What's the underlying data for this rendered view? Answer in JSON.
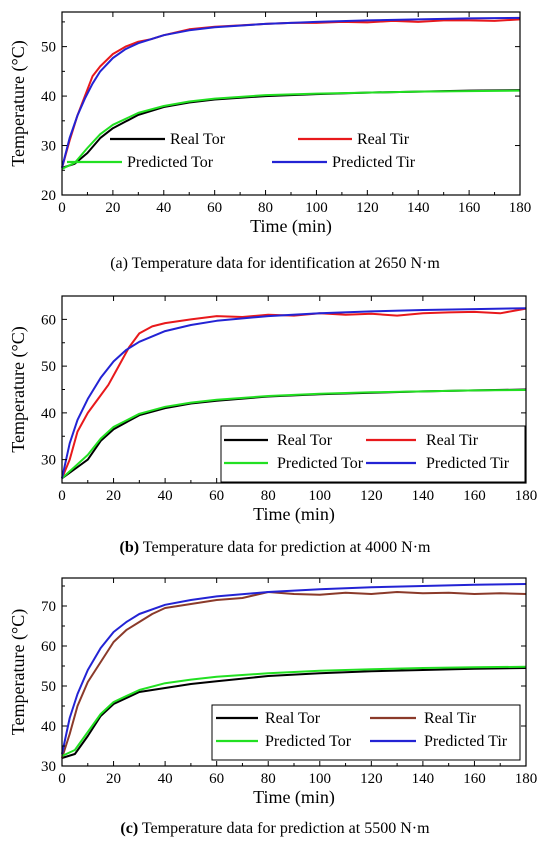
{
  "chart_data": [
    {
      "type": "line",
      "caption": "(a) Temperature data for identification at 2650 N·m",
      "caption_prefix": "(a)",
      "caption_body": " Temperature data for identification at 2650 N·m",
      "xlabel": "Time (min)",
      "ylabel": "Temperature (°C)",
      "xlim": [
        0,
        180
      ],
      "ylim": [
        20,
        57
      ],
      "xticks": [
        0,
        20,
        40,
        60,
        80,
        100,
        120,
        140,
        160,
        180
      ],
      "yticks": [
        20,
        30,
        40,
        50
      ],
      "legend_position": "inside, center-left, below the upper curves",
      "series": [
        {
          "name": "Real Tor",
          "color": "#000000",
          "x": [
            0,
            5,
            10,
            15,
            20,
            30,
            40,
            50,
            60,
            80,
            100,
            120,
            140,
            160,
            180
          ],
          "y": [
            25.5,
            26.3,
            28.5,
            31.5,
            33.5,
            36.2,
            37.8,
            38.7,
            39.3,
            40.0,
            40.4,
            40.7,
            40.9,
            41.1,
            41.2
          ]
        },
        {
          "name": "Real Tir",
          "color": "#e8191c",
          "x": [
            0,
            3,
            6,
            9,
            12,
            15,
            20,
            25,
            30,
            35,
            40,
            50,
            60,
            70,
            80,
            90,
            100,
            110,
            120,
            130,
            140,
            150,
            160,
            170,
            180
          ],
          "y": [
            25.5,
            31.0,
            36.0,
            40.0,
            44.0,
            46.0,
            48.5,
            50.0,
            51.0,
            51.5,
            52.3,
            53.5,
            54.0,
            54.3,
            54.6,
            54.8,
            54.8,
            55.0,
            54.9,
            55.2,
            55.0,
            55.3,
            55.3,
            55.2,
            55.5
          ]
        },
        {
          "name": "Predicted Tor",
          "color": "#22e022",
          "x": [
            0,
            5,
            10,
            15,
            20,
            30,
            40,
            50,
            60,
            80,
            100,
            120,
            140,
            160,
            180
          ],
          "y": [
            25.3,
            26.5,
            29.5,
            32.3,
            34.2,
            36.6,
            38.0,
            38.9,
            39.5,
            40.2,
            40.5,
            40.7,
            40.9,
            41.0,
            41.1
          ]
        },
        {
          "name": "Predicted Tir",
          "color": "#2323d4",
          "x": [
            0,
            3,
            6,
            9,
            12,
            15,
            20,
            25,
            30,
            40,
            50,
            60,
            80,
            100,
            120,
            140,
            160,
            180
          ],
          "y": [
            25.5,
            31.5,
            36.0,
            39.5,
            42.5,
            45.0,
            47.7,
            49.5,
            50.7,
            52.3,
            53.3,
            53.9,
            54.6,
            55.0,
            55.3,
            55.5,
            55.7,
            55.8
          ]
        }
      ]
    },
    {
      "type": "line",
      "caption": "(b) Temperature data for prediction at 4000 N·m",
      "caption_prefix": "(b)",
      "caption_body": " Temperature data for prediction at 4000 N·m",
      "xlabel": "Time (min)",
      "ylabel": "Temperature (°C)",
      "xlim": [
        0,
        180
      ],
      "ylim": [
        25,
        65
      ],
      "xticks": [
        0,
        20,
        40,
        60,
        80,
        100,
        120,
        140,
        160,
        180
      ],
      "yticks": [
        30,
        40,
        50,
        60
      ],
      "legend_position": "bottom-right, boxed",
      "series": [
        {
          "name": "Real Tor",
          "color": "#000000",
          "x": [
            0,
            5,
            10,
            15,
            20,
            30,
            40,
            50,
            60,
            80,
            100,
            120,
            140,
            160,
            180
          ],
          "y": [
            26.0,
            28.0,
            30.0,
            34.0,
            36.5,
            39.5,
            41.0,
            42.0,
            42.6,
            43.5,
            44.0,
            44.3,
            44.6,
            44.8,
            45.0
          ]
        },
        {
          "name": "Real Tir",
          "color": "#e8191c",
          "x": [
            0,
            3,
            6,
            10,
            14,
            18,
            22,
            26,
            30,
            35,
            40,
            50,
            60,
            70,
            80,
            90,
            100,
            110,
            120,
            130,
            140,
            150,
            160,
            170,
            180
          ],
          "y": [
            26.0,
            30.0,
            36.0,
            40.0,
            43.0,
            46.0,
            50.0,
            54.0,
            57.0,
            58.5,
            59.2,
            60.0,
            60.7,
            60.5,
            61.0,
            60.8,
            61.3,
            61.0,
            61.2,
            60.8,
            61.3,
            61.5,
            61.6,
            61.3,
            62.3
          ]
        },
        {
          "name": "Predicted Tor",
          "color": "#22e022",
          "x": [
            0,
            5,
            10,
            15,
            20,
            30,
            40,
            50,
            60,
            80,
            100,
            120,
            140,
            160,
            180
          ],
          "y": [
            26.0,
            28.5,
            31.0,
            34.5,
            37.0,
            39.8,
            41.3,
            42.2,
            42.8,
            43.6,
            44.1,
            44.4,
            44.6,
            44.8,
            44.9
          ]
        },
        {
          "name": "Predicted Tir",
          "color": "#2323d4",
          "x": [
            0,
            3,
            6,
            10,
            15,
            20,
            25,
            30,
            40,
            50,
            60,
            80,
            100,
            120,
            140,
            160,
            180
          ],
          "y": [
            26.0,
            33.5,
            38.5,
            43.0,
            47.5,
            51.0,
            53.5,
            55.2,
            57.5,
            58.8,
            59.7,
            60.7,
            61.3,
            61.7,
            62.0,
            62.2,
            62.4
          ]
        }
      ]
    },
    {
      "type": "line",
      "caption": "(c) Temperature data for prediction at 5500 N·m",
      "caption_prefix": "(c)",
      "caption_body": " Temperature data for prediction at 5500 N·m",
      "xlabel": "Time (min)",
      "ylabel": "Temperature (°C)",
      "xlim": [
        0,
        180
      ],
      "ylim": [
        30,
        77
      ],
      "xticks": [
        0,
        20,
        40,
        60,
        80,
        100,
        120,
        140,
        160,
        180
      ],
      "yticks": [
        30,
        40,
        50,
        60,
        70
      ],
      "legend_position": "bottom-right, boxed",
      "series": [
        {
          "name": "Real Tor",
          "color": "#000000",
          "x": [
            0,
            5,
            10,
            15,
            20,
            30,
            40,
            50,
            60,
            80,
            100,
            120,
            140,
            160,
            180
          ],
          "y": [
            32.0,
            33.0,
            37.5,
            42.5,
            45.5,
            48.5,
            49.5,
            50.5,
            51.2,
            52.5,
            53.2,
            53.7,
            54.0,
            54.3,
            54.5
          ]
        },
        {
          "name": "Real Tir",
          "color": "#8b3a2a",
          "x": [
            0,
            3,
            6,
            10,
            15,
            20,
            25,
            30,
            35,
            40,
            50,
            60,
            70,
            80,
            90,
            100,
            110,
            120,
            130,
            140,
            150,
            160,
            170,
            180
          ],
          "y": [
            32.0,
            38.0,
            45.0,
            51.0,
            56.0,
            61.0,
            64.0,
            66.0,
            68.0,
            69.5,
            70.5,
            71.5,
            72.0,
            73.5,
            73.0,
            72.8,
            73.3,
            73.0,
            73.5,
            73.2,
            73.3,
            73.0,
            73.2,
            73.0
          ]
        },
        {
          "name": "Predicted Tor",
          "color": "#22e022",
          "x": [
            0,
            5,
            10,
            15,
            20,
            30,
            40,
            50,
            60,
            80,
            100,
            120,
            140,
            160,
            180
          ],
          "y": [
            32.5,
            34.0,
            38.5,
            43.0,
            46.0,
            49.0,
            50.7,
            51.6,
            52.3,
            53.2,
            53.8,
            54.2,
            54.5,
            54.7,
            54.8
          ]
        },
        {
          "name": "Predicted Tir",
          "color": "#2323d4",
          "x": [
            0,
            3,
            6,
            10,
            15,
            20,
            25,
            30,
            40,
            50,
            60,
            80,
            100,
            120,
            140,
            160,
            180
          ],
          "y": [
            33.0,
            42.0,
            48.0,
            54.0,
            59.5,
            63.5,
            66.0,
            68.0,
            70.3,
            71.5,
            72.4,
            73.5,
            74.2,
            74.7,
            75.0,
            75.3,
            75.5
          ]
        }
      ]
    }
  ]
}
